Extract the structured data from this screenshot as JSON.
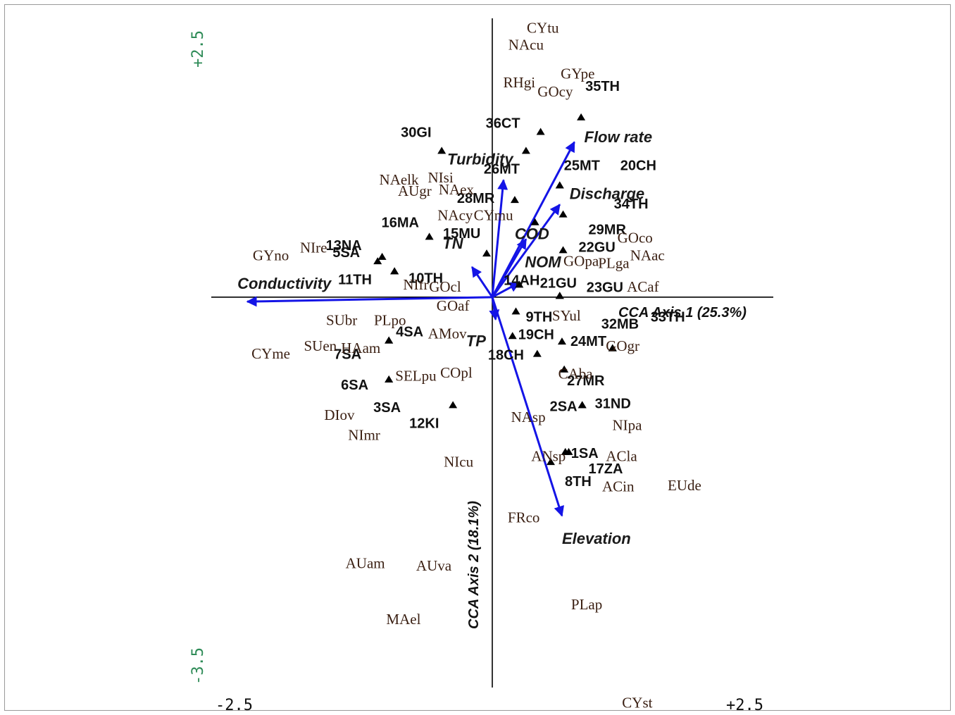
{
  "chart_data": {
    "type": "scatter",
    "title": "",
    "xlabel": "CCA Axis 1 (25.3%)",
    "ylabel": "CCA Axis 2 (18.1%)",
    "xlim": [
      -2.5,
      2.5
    ],
    "ylim": [
      -3.5,
      2.5
    ],
    "x_tick_labels": [
      "-2.5",
      "+2.5"
    ],
    "y_tick_labels": [
      "+2.5",
      "-3.5"
    ],
    "grid": false,
    "legend": "none",
    "colors": {
      "arrow": "#1414e6",
      "tick_x": "#111111",
      "tick_y": "#2e8b57",
      "species": "#3a1f12"
    },
    "environmental_vectors": [
      {
        "name": "Conductivity",
        "x": -2.18,
        "y": -0.04
      },
      {
        "name": "Flow rate",
        "x": 0.73,
        "y": 1.39
      },
      {
        "name": "Turbidity",
        "x": 0.1,
        "y": 1.05
      },
      {
        "name": "Discharge",
        "x": 0.6,
        "y": 0.83
      },
      {
        "name": "COD",
        "x": 0.3,
        "y": 0.52
      },
      {
        "name": "NOM",
        "x": 0.24,
        "y": 0.13
      },
      {
        "name": "TN",
        "x": -0.18,
        "y": 0.27
      },
      {
        "name": "TP",
        "x": 0.03,
        "y": -0.2
      },
      {
        "name": "Elevation",
        "x": 0.62,
        "y": -1.96
      }
    ],
    "sites": [
      {
        "label": "35TH",
        "x": 0.79,
        "y": 1.61
      },
      {
        "label": "36CT",
        "x": 0.43,
        "y": 1.48
      },
      {
        "label": "30GI",
        "x": -0.45,
        "y": 1.31
      },
      {
        "label": "26MT",
        "x": 0.3,
        "y": 1.31
      },
      {
        "label": "25MT",
        "x": 0.6,
        "y": 1.0
      },
      {
        "label": "20CH",
        "x": 0.6,
        "y": 1.0
      },
      {
        "label": "28MR",
        "x": 0.2,
        "y": 0.87
      },
      {
        "label": "13NA",
        "x": -0.98,
        "y": 0.36
      },
      {
        "label": "16MA",
        "x": -0.56,
        "y": 0.54
      },
      {
        "label": "29MR",
        "x": 0.63,
        "y": 0.74
      },
      {
        "label": "34TH",
        "x": 0.38,
        "y": 0.67
      },
      {
        "label": "15MU",
        "x": -0.05,
        "y": 0.39
      },
      {
        "label": "5SA",
        "x": -1.02,
        "y": 0.32
      },
      {
        "label": "10TH",
        "x": -0.87,
        "y": 0.23
      },
      {
        "label": "11TH",
        "x": -0.87,
        "y": 0.23
      },
      {
        "label": "22GU",
        "x": 0.63,
        "y": 0.42
      },
      {
        "label": "14AH",
        "x": 0.24,
        "y": 0.11
      },
      {
        "label": "21GU",
        "x": 0.6,
        "y": 0.01
      },
      {
        "label": "23GU",
        "x": 0.6,
        "y": 0.01
      },
      {
        "label": "9TH",
        "x": 0.21,
        "y": -0.13
      },
      {
        "label": "4SA",
        "x": -0.92,
        "y": -0.39
      },
      {
        "label": "7SA",
        "x": -0.92,
        "y": -0.39
      },
      {
        "label": "19CH",
        "x": 0.18,
        "y": -0.35
      },
      {
        "label": "24MT",
        "x": 0.62,
        "y": -0.4
      },
      {
        "label": "18CH",
        "x": 0.4,
        "y": -0.51
      },
      {
        "label": "27MR",
        "x": 0.64,
        "y": -0.65
      },
      {
        "label": "32MB",
        "x": 1.07,
        "y": -0.46
      },
      {
        "label": "33TH",
        "x": 1.07,
        "y": -0.46
      },
      {
        "label": "6SA",
        "x": -0.92,
        "y": -0.74
      },
      {
        "label": "3SA",
        "x": -0.92,
        "y": -0.74
      },
      {
        "label": "12KI",
        "x": -0.35,
        "y": -0.97
      },
      {
        "label": "2SA",
        "x": 0.8,
        "y": -0.97
      },
      {
        "label": "31ND",
        "x": 0.8,
        "y": -0.97
      },
      {
        "label": "17ZA",
        "x": 0.68,
        "y": -1.39
      },
      {
        "label": "1SA",
        "x": 0.65,
        "y": -1.39
      },
      {
        "label": "8TH",
        "x": 0.52,
        "y": -1.48
      }
    ],
    "species": [
      {
        "label": "CYtu",
        "x": 0.45,
        "y": 2.4
      },
      {
        "label": "NAcu",
        "x": 0.3,
        "y": 2.25
      },
      {
        "label": "GYpe",
        "x": 0.76,
        "y": 1.99
      },
      {
        "label": "RHgi",
        "x": 0.24,
        "y": 1.91
      },
      {
        "label": "GOcy",
        "x": 0.56,
        "y": 1.83
      },
      {
        "label": "NAelk",
        "x": -0.83,
        "y": 1.04
      },
      {
        "label": "NIsi",
        "x": -0.46,
        "y": 1.06
      },
      {
        "label": "AUgr",
        "x": -0.69,
        "y": 0.94
      },
      {
        "label": "NAex",
        "x": -0.32,
        "y": 0.95
      },
      {
        "label": "NAcy",
        "x": -0.33,
        "y": 0.72
      },
      {
        "label": "CYmu",
        "x": 0.01,
        "y": 0.72
      },
      {
        "label": "GOco",
        "x": 1.27,
        "y": 0.52
      },
      {
        "label": "NIre",
        "x": -1.59,
        "y": 0.43
      },
      {
        "label": "GYno",
        "x": -1.97,
        "y": 0.36
      },
      {
        "label": "NAac",
        "x": 1.38,
        "y": 0.36
      },
      {
        "label": "GOpa",
        "x": 0.79,
        "y": 0.31
      },
      {
        "label": "PLga",
        "x": 1.08,
        "y": 0.29
      },
      {
        "label": "NIfr",
        "x": -0.68,
        "y": 0.1
      },
      {
        "label": "GOcl",
        "x": -0.42,
        "y": 0.08
      },
      {
        "label": "ACaf",
        "x": 1.34,
        "y": 0.08
      },
      {
        "label": "GOaf",
        "x": -0.35,
        "y": -0.09
      },
      {
        "label": "SUbr",
        "x": -1.34,
        "y": -0.22
      },
      {
        "label": "PLpo",
        "x": -0.91,
        "y": -0.22
      },
      {
        "label": "SYul",
        "x": 0.66,
        "y": -0.18
      },
      {
        "label": "AMov",
        "x": -0.4,
        "y": -0.34
      },
      {
        "label": "HAam",
        "x": -1.17,
        "y": -0.47
      },
      {
        "label": "SUen",
        "x": -1.53,
        "y": -0.45
      },
      {
        "label": "CYme",
        "x": -1.97,
        "y": -0.52
      },
      {
        "label": "GOgr",
        "x": 1.16,
        "y": -0.45
      },
      {
        "label": "SELpu",
        "x": -0.68,
        "y": -0.72
      },
      {
        "label": "COpl",
        "x": -0.32,
        "y": -0.69
      },
      {
        "label": "CAba",
        "x": 0.74,
        "y": -0.7
      },
      {
        "label": "DIov",
        "x": -1.36,
        "y": -1.07
      },
      {
        "label": "NImr",
        "x": -1.14,
        "y": -1.25
      },
      {
        "label": "NAsp",
        "x": 0.32,
        "y": -1.09
      },
      {
        "label": "NIpa",
        "x": 1.2,
        "y": -1.16
      },
      {
        "label": "NIcu",
        "x": -0.3,
        "y": -1.49
      },
      {
        "label": "ANsp",
        "x": 0.5,
        "y": -1.44
      },
      {
        "label": "ACla",
        "x": 1.15,
        "y": -1.44
      },
      {
        "label": "ACin",
        "x": 1.12,
        "y": -1.71
      },
      {
        "label": "EUde",
        "x": 1.71,
        "y": -1.7
      },
      {
        "label": "FRco",
        "x": 0.28,
        "y": -1.99
      },
      {
        "label": "AUam",
        "x": -1.13,
        "y": -2.4
      },
      {
        "label": "AUva",
        "x": -0.52,
        "y": -2.42
      },
      {
        "label": "MAel",
        "x": -0.79,
        "y": -2.9
      },
      {
        "label": "PLap",
        "x": 0.84,
        "y": -2.77
      },
      {
        "label": "CYst",
        "x": 1.29,
        "y": -3.65
      }
    ]
  }
}
